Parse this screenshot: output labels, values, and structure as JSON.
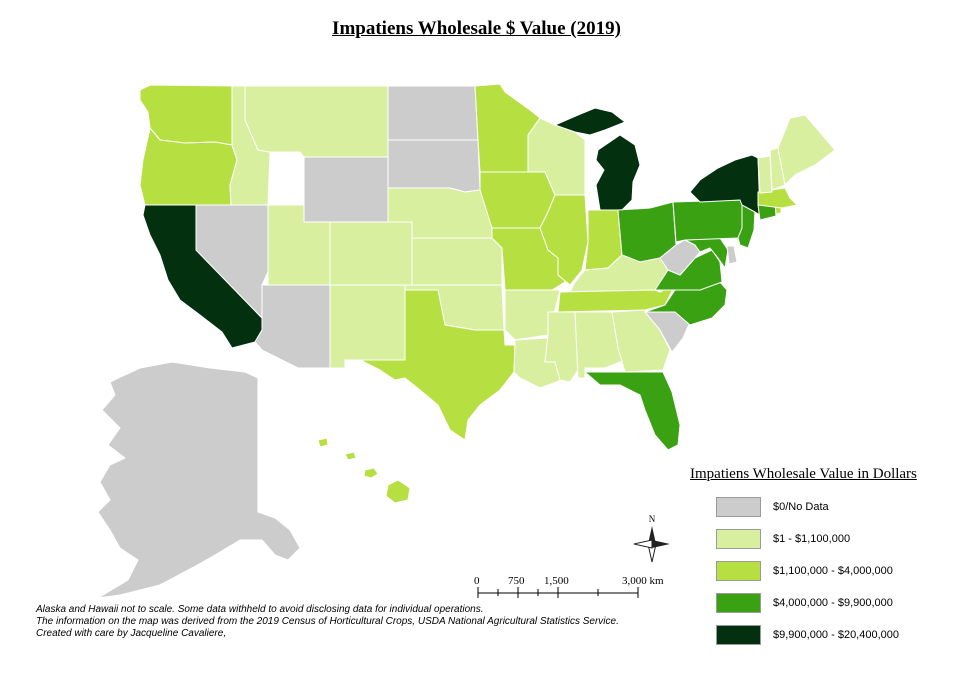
{
  "title": "Impatiens Wholesale $ Value (2019)",
  "colors": {
    "nodata": "#cccccc",
    "c1": "#d9efa0",
    "c2": "#b6e042",
    "c3": "#3aa112",
    "c4": "#03300f"
  },
  "legend": {
    "title": "Impatiens Wholesale Value in Dollars",
    "items": [
      {
        "label": "$0/No Data",
        "color": "#cccccc"
      },
      {
        "label": "$1 - $1,100,000",
        "color": "#d9efa0"
      },
      {
        "label": "$1,100,000 - $4,000,000",
        "color": "#b6e042"
      },
      {
        "label": "$4,000,000 - $9,900,000",
        "color": "#3aa112"
      },
      {
        "label": "$9,900,000 - $20,400,000",
        "color": "#03300f"
      }
    ]
  },
  "north_arrow": {
    "label": "N"
  },
  "scale_bar": {
    "labels": [
      "0",
      "750",
      "1,500",
      "3,000 km"
    ]
  },
  "notes": [
    "Alaska and Hawaii not to scale. Some data withheld to avoid disclosing data for individual operations.",
    "The information on the map was derived from the 2019 Census of Horticultural Crops, USDA National Agricultural Statistics Service.",
    "Created with care by Jacqueline Cavaliere,"
  ],
  "states": {
    "WA": "c2",
    "OR": "c2",
    "CA": "c4",
    "NV": "nodata",
    "ID": "c1",
    "MT": "c1",
    "WY": "nodata",
    "UT": "c1",
    "AZ": "nodata",
    "CO": "c1",
    "NM": "c1",
    "ND": "nodata",
    "SD": "nodata",
    "NE": "c1",
    "KS": "c1",
    "OK": "c1",
    "TX": "c2",
    "MN": "c2",
    "IA": "c2",
    "MO": "c2",
    "AR": "c1",
    "LA": "c1",
    "WI": "c1",
    "IL": "c2",
    "MI": "c4",
    "IN": "c2",
    "OH": "c3",
    "KY": "c1",
    "TN": "c2",
    "MS": "c1",
    "AL": "c1",
    "GA": "c1",
    "FL": "c3",
    "SC": "nodata",
    "NC": "c3",
    "VA": "c3",
    "WV": "nodata",
    "MD": "c3",
    "DE": "nodata",
    "PA": "c3",
    "NJ": "c3",
    "NY": "c4",
    "CT": "c3",
    "RI": "c2",
    "MA": "c2",
    "VT": "c1",
    "NH": "c1",
    "ME": "c1",
    "AK": "nodata",
    "HI": "c2"
  }
}
